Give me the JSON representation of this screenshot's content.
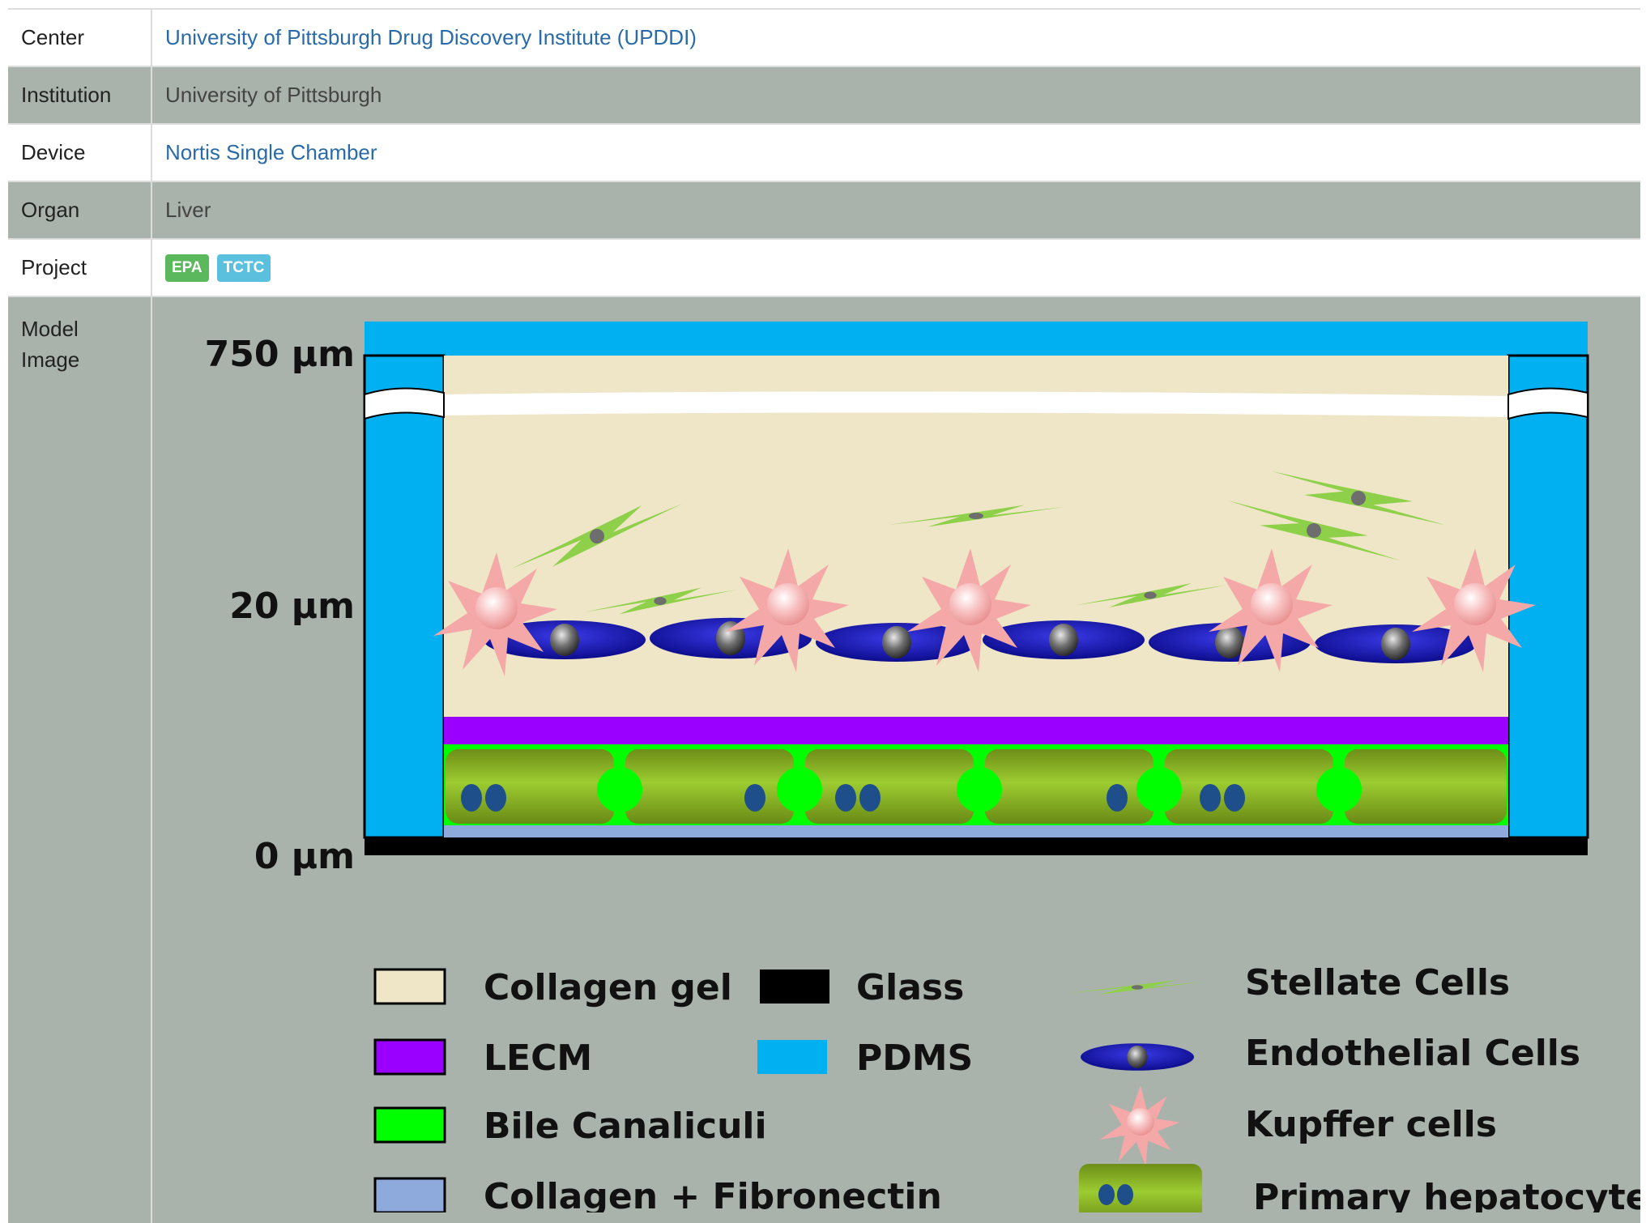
{
  "rows": {
    "center": {
      "label": "Center",
      "value": "University of Pittsburgh Drug Discovery Institute (UPDDI)"
    },
    "institution": {
      "label": "Institution",
      "value": "University of Pittsburgh"
    },
    "device": {
      "label": "Device",
      "value": "Nortis Single Chamber"
    },
    "organ": {
      "label": "Organ",
      "value": "Liver"
    },
    "project": {
      "label": "Project",
      "badges": [
        "EPA",
        "TCTC"
      ]
    },
    "model_image": {
      "label_line1": "Model",
      "label_line2": "Image"
    }
  },
  "diagram": {
    "scale_labels": [
      "750 µm",
      "20 µm",
      "0 µm"
    ],
    "legend": {
      "collagen_gel": "Collagen gel",
      "glass": "Glass",
      "lecm": "LECM",
      "pdms": "PDMS",
      "bile": "Bile Canaliculi",
      "collagen_fibronectin": "Collagen + Fibronectin",
      "stellate": "Stellate Cells",
      "endothelial": "Endothelial Cells",
      "kupffer": "Kupffer cells",
      "hepatocytes": "Primary hepatocytes"
    }
  },
  "colors": {
    "link": "#2a6aa8",
    "row_grey": "#a9b3ab",
    "badge_epa": "#5cb85c",
    "badge_tctc": "#5bc0de",
    "collagen_gel": "#efe6c8",
    "glass": "#000000",
    "lecm": "#9900ff",
    "pdms": "#00b0f0",
    "bile": "#00ff00",
    "collagen_fibronectin": "#8eaadc",
    "hepatocyte": "#8cb828"
  }
}
